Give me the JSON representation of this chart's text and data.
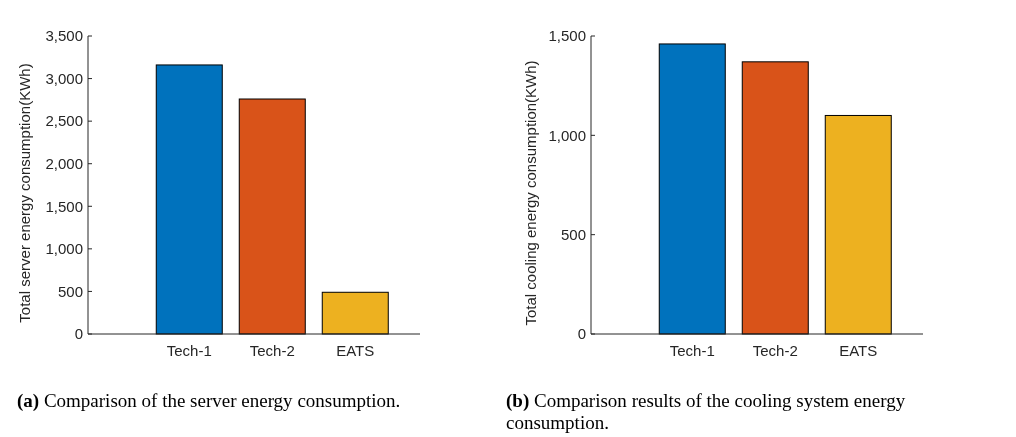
{
  "chart_data": [
    {
      "type": "bar",
      "categories": [
        "Tech-1",
        "Tech-2",
        "EATS"
      ],
      "values": [
        3160,
        2760,
        490
      ],
      "colors": [
        "#0072bd",
        "#d95319",
        "#edb120"
      ],
      "ylabel": "Total server energy consumption(KWh)",
      "ylim": [
        0,
        3500
      ],
      "yticks": [
        {
          "value": 0,
          "label": "0"
        },
        {
          "value": 500,
          "label": "500"
        },
        {
          "value": 1000,
          "label": "1,000"
        },
        {
          "value": 1500,
          "label": "1,500"
        },
        {
          "value": 2000,
          "label": "2,000"
        },
        {
          "value": 2500,
          "label": "2,500"
        },
        {
          "value": 3000,
          "label": "3,000"
        },
        {
          "value": 3500,
          "label": "3,500"
        }
      ],
      "grid": false,
      "annotations": [
        "(a) Comparison of the server energy consumption."
      ]
    },
    {
      "type": "bar",
      "categories": [
        "Tech-1",
        "Tech-2",
        "EATS"
      ],
      "values": [
        1460,
        1370,
        1100
      ],
      "colors": [
        "#0072bd",
        "#d95319",
        "#edb120"
      ],
      "ylabel": "Total cooling energy consumption(KWh)",
      "ylim": [
        0,
        1500
      ],
      "yticks": [
        {
          "value": 0,
          "label": "0"
        },
        {
          "value": 500,
          "label": "500"
        },
        {
          "value": 1000,
          "label": "1,000"
        },
        {
          "value": 1500,
          "label": "1,500"
        }
      ],
      "grid": false,
      "annotations": [
        "(b) Comparison results of the cooling system energy consumption."
      ]
    }
  ]
}
